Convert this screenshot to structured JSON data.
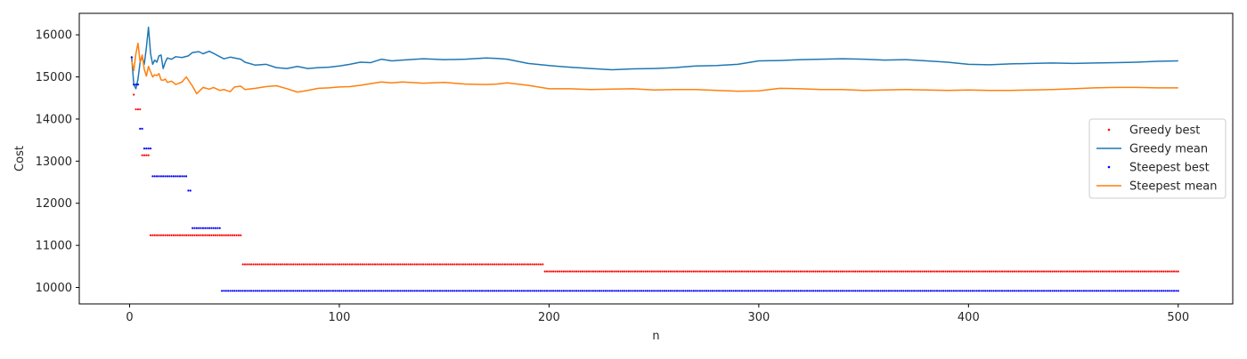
{
  "chart_data": {
    "type": "line",
    "title": "",
    "xlabel": "n",
    "ylabel": "Cost",
    "xlim": [
      -24,
      526
    ],
    "ylim": [
      9610,
      16510
    ],
    "x_ticks": [
      0,
      100,
      200,
      300,
      400,
      500
    ],
    "y_ticks": [
      10000,
      11000,
      12000,
      13000,
      14000,
      15000,
      16000
    ],
    "x_tick_labels": [
      "0",
      "100",
      "200",
      "300",
      "400",
      "500"
    ],
    "y_tick_labels": [
      "10000",
      "11000",
      "12000",
      "13000",
      "14000",
      "15000",
      "16000"
    ],
    "grid": false,
    "legend_position": "center-right",
    "series": [
      {
        "name": "Greedy best",
        "kind": "dots",
        "color": "#ff0000",
        "steps": [
          {
            "from": 1,
            "to": 2,
            "y": 15460
          },
          {
            "from": 2,
            "to": 3,
            "y": 14580
          },
          {
            "from": 3,
            "to": 6,
            "y": 14230
          },
          {
            "from": 6,
            "to": 10,
            "y": 13140
          },
          {
            "from": 10,
            "to": 54,
            "y": 11240
          },
          {
            "from": 54,
            "to": 198,
            "y": 10550
          },
          {
            "from": 198,
            "to": 500,
            "y": 10380
          }
        ]
      },
      {
        "name": "Greedy mean",
        "kind": "line",
        "color": "#1f77b4",
        "x": [
          1,
          2,
          3,
          4,
          5,
          6,
          7,
          8,
          9,
          10,
          11,
          12,
          13,
          14,
          15,
          16,
          17,
          18,
          20,
          22,
          25,
          28,
          30,
          33,
          35,
          38,
          40,
          43,
          45,
          48,
          50,
          53,
          55,
          60,
          65,
          70,
          75,
          80,
          85,
          90,
          95,
          100,
          105,
          110,
          115,
          120,
          125,
          130,
          140,
          150,
          160,
          170,
          175,
          180,
          190,
          200,
          210,
          220,
          230,
          240,
          250,
          260,
          270,
          280,
          290,
          300,
          310,
          320,
          330,
          340,
          350,
          360,
          370,
          380,
          390,
          400,
          410,
          420,
          430,
          440,
          450,
          460,
          470,
          480,
          490,
          500
        ],
        "y": [
          15450,
          14820,
          14720,
          14950,
          15350,
          15480,
          15300,
          15700,
          16180,
          15550,
          15300,
          15400,
          15350,
          15500,
          15520,
          15200,
          15350,
          15450,
          15420,
          15480,
          15460,
          15500,
          15580,
          15600,
          15550,
          15610,
          15560,
          15480,
          15430,
          15470,
          15450,
          15420,
          15350,
          15280,
          15300,
          15220,
          15200,
          15250,
          15200,
          15220,
          15230,
          15260,
          15300,
          15350,
          15340,
          15420,
          15380,
          15400,
          15430,
          15410,
          15420,
          15450,
          15440,
          15420,
          15320,
          15270,
          15230,
          15200,
          15170,
          15190,
          15200,
          15220,
          15260,
          15270,
          15300,
          15380,
          15390,
          15410,
          15420,
          15430,
          15420,
          15400,
          15410,
          15380,
          15350,
          15300,
          15290,
          15310,
          15320,
          15330,
          15320,
          15330,
          15340,
          15350,
          15370,
          15380
        ]
      },
      {
        "name": "Steepest best",
        "kind": "dots",
        "color": "#0000ff",
        "steps": [
          {
            "from": 1,
            "to": 2,
            "y": 15470
          },
          {
            "from": 2,
            "to": 5,
            "y": 14820
          },
          {
            "from": 5,
            "to": 7,
            "y": 13770
          },
          {
            "from": 7,
            "to": 11,
            "y": 13300
          },
          {
            "from": 11,
            "to": 28,
            "y": 12640
          },
          {
            "from": 28,
            "to": 30,
            "y": 12300
          },
          {
            "from": 30,
            "to": 44,
            "y": 11410
          },
          {
            "from": 44,
            "to": 500,
            "y": 9920
          }
        ]
      },
      {
        "name": "Steepest mean",
        "kind": "line",
        "color": "#ff7f0e",
        "x": [
          1,
          2,
          3,
          4,
          5,
          6,
          7,
          8,
          9,
          10,
          11,
          12,
          13,
          14,
          15,
          16,
          17,
          18,
          20,
          22,
          25,
          27,
          30,
          32,
          35,
          38,
          40,
          43,
          45,
          48,
          50,
          53,
          55,
          60,
          65,
          70,
          75,
          80,
          85,
          90,
          95,
          100,
          105,
          110,
          115,
          120,
          125,
          130,
          140,
          150,
          160,
          170,
          175,
          180,
          190,
          200,
          210,
          220,
          230,
          240,
          250,
          260,
          270,
          280,
          290,
          300,
          310,
          320,
          330,
          340,
          350,
          360,
          370,
          380,
          390,
          400,
          410,
          420,
          430,
          440,
          450,
          460,
          470,
          480,
          490,
          500
        ],
        "y": [
          15380,
          15150,
          15550,
          15800,
          15350,
          15520,
          15180,
          15020,
          15250,
          15120,
          15000,
          15050,
          15030,
          15080,
          14930,
          14920,
          14950,
          14870,
          14900,
          14820,
          14880,
          15000,
          14780,
          14600,
          14750,
          14710,
          14750,
          14680,
          14700,
          14650,
          14760,
          14780,
          14700,
          14730,
          14770,
          14790,
          14720,
          14640,
          14680,
          14730,
          14740,
          14760,
          14770,
          14800,
          14840,
          14880,
          14860,
          14880,
          14850,
          14870,
          14830,
          14820,
          14830,
          14860,
          14800,
          14720,
          14720,
          14700,
          14710,
          14720,
          14690,
          14700,
          14700,
          14680,
          14660,
          14670,
          14730,
          14720,
          14700,
          14700,
          14680,
          14690,
          14700,
          14690,
          14680,
          14690,
          14680,
          14680,
          14690,
          14700,
          14720,
          14740,
          14750,
          14750,
          14740,
          14740
        ]
      }
    ]
  }
}
